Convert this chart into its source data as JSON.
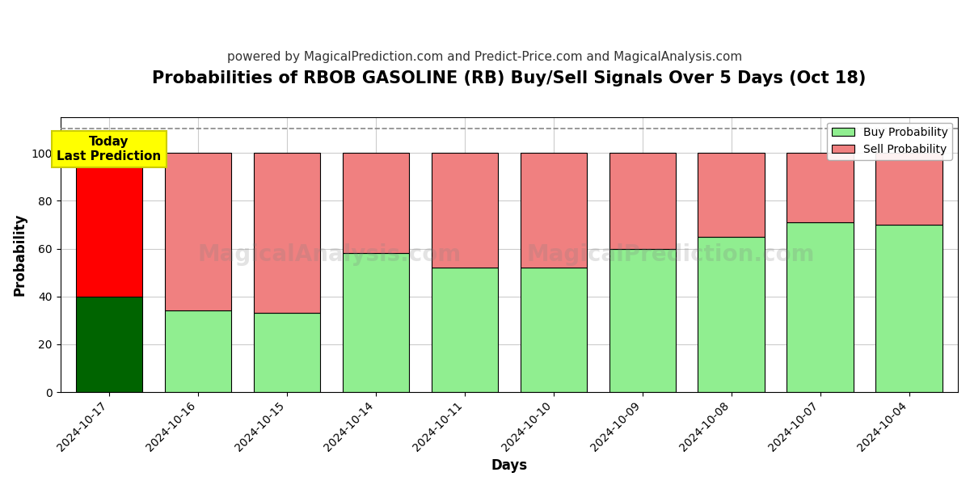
{
  "title": "Probabilities of RBOB GASOLINE (RB) Buy/Sell Signals Over 5 Days (Oct 18)",
  "subtitle": "powered by MagicalPrediction.com and Predict-Price.com and MagicalAnalysis.com",
  "xlabel": "Days",
  "ylabel": "Probability",
  "dates": [
    "2024-10-17",
    "2024-10-16",
    "2024-10-15",
    "2024-10-14",
    "2024-10-11",
    "2024-10-10",
    "2024-10-09",
    "2024-10-08",
    "2024-10-07",
    "2024-10-04"
  ],
  "buy_values": [
    40,
    34,
    33,
    58,
    52,
    52,
    60,
    65,
    71,
    70
  ],
  "sell_values": [
    60,
    66,
    67,
    42,
    48,
    48,
    40,
    35,
    29,
    30
  ],
  "buy_color_today": "#006400",
  "sell_color_today": "#ff0000",
  "buy_color_normal": "#90EE90",
  "sell_color_normal": "#F08080",
  "bar_edge_color": "#000000",
  "bar_edge_width": 0.8,
  "ylim": [
    0,
    115
  ],
  "dashed_line_y": 110,
  "dashed_line_color": "#888888",
  "watermark_text1": "MagicalAnalysis.com",
  "watermark_text2": "MagicalPrediction.com",
  "today_label": "Today\nLast Prediction",
  "today_box_color": "#FFFF00",
  "today_box_edge_color": "#cccc00",
  "legend_buy_label": "Buy Probability",
  "legend_sell_label": "Sell Probability",
  "title_fontsize": 15,
  "subtitle_fontsize": 11,
  "axis_label_fontsize": 12,
  "tick_fontsize": 10,
  "background_color": "#ffffff",
  "grid_color": "#cccccc"
}
